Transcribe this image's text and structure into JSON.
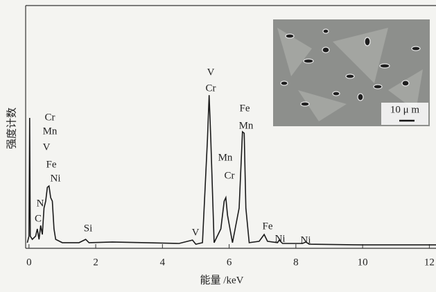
{
  "chart_data": {
    "type": "line",
    "x_label": "能量 /keV",
    "y_label": "强度计数",
    "xlim": [
      -0.1,
      12.2
    ],
    "ylim": [
      0,
      100
    ],
    "xticks": [
      0,
      2,
      4,
      6,
      8,
      10,
      12
    ],
    "x": [
      -0.05,
      0.0,
      0.02,
      0.04,
      0.1,
      0.2,
      0.25,
      0.3,
      0.35,
      0.4,
      0.45,
      0.5,
      0.55,
      0.6,
      0.65,
      0.7,
      0.75,
      0.8,
      1.0,
      1.5,
      1.7,
      1.8,
      2.5,
      3.5,
      4.5,
      4.9,
      5.0,
      5.2,
      5.35,
      5.4,
      5.45,
      5.55,
      5.75,
      5.85,
      5.9,
      5.95,
      6.1,
      6.3,
      6.4,
      6.45,
      6.5,
      6.6,
      6.9,
      7.05,
      7.15,
      7.45,
      7.5,
      7.6,
      8.2,
      8.3,
      8.4,
      10,
      12.2
    ],
    "series": [
      {
        "color": "#1a1a1a",
        "values": [
          2.3,
          5,
          53.7,
          5,
          3.7,
          5,
          8,
          3.7,
          9.4,
          5.7,
          16.6,
          19.4,
          25.1,
          25.7,
          20.9,
          19.4,
          8,
          3.7,
          2.3,
          2.3,
          3.7,
          2.3,
          2.6,
          2.3,
          2,
          3.4,
          1.7,
          2.3,
          45,
          63.1,
          45,
          2.3,
          8,
          19.4,
          20.9,
          13.7,
          2.3,
          16.6,
          48,
          47.4,
          16.6,
          2.3,
          2.9,
          5.7,
          2.9,
          2.3,
          3.4,
          2,
          2,
          2.6,
          1.7,
          1.4,
          1.4
        ]
      }
    ],
    "annotations": [
      "Cr",
      "Mn",
      "V",
      "Fe",
      "Ni",
      "N",
      "C",
      "Si",
      "V",
      "V",
      "Cr",
      "Mn",
      "Cr",
      "Fe",
      "Mn",
      "Fe",
      "Ni",
      "Ni"
    ],
    "inset_scale_label": "10 μ m"
  }
}
